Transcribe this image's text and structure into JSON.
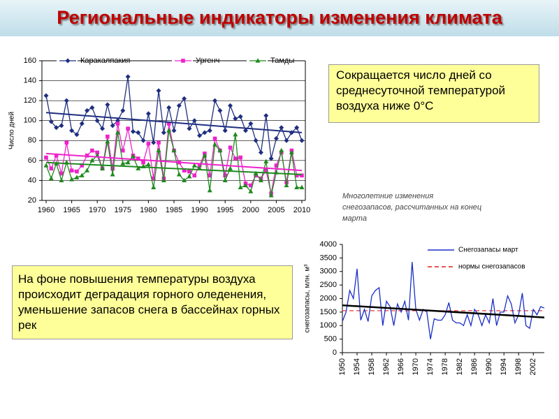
{
  "title": "Региональные индикаторы изменения климата",
  "text_boxes": [
    "Сокращается число дней со среднесуточной температурой воздуха ниже 0°С",
    "На фоне повышения температуры воздуха происходит деградация горного оледенения, уменьшение запасов снега в бассейнах горных рек"
  ],
  "chart_data": [
    {
      "type": "line",
      "ylabel": "Число дней",
      "legend": "top",
      "grid": true,
      "x": [
        1960,
        1961,
        1962,
        1963,
        1964,
        1965,
        1966,
        1967,
        1968,
        1969,
        1970,
        1971,
        1972,
        1973,
        1974,
        1975,
        1976,
        1977,
        1978,
        1979,
        1980,
        1981,
        1982,
        1983,
        1984,
        1985,
        1986,
        1987,
        1988,
        1989,
        1990,
        1991,
        1992,
        1993,
        1994,
        1995,
        1996,
        1997,
        1998,
        1999,
        2000,
        2001,
        2002,
        2003,
        2004,
        2005,
        2006,
        2007,
        2008,
        2009,
        2010
      ],
      "xlim": [
        1960,
        2010
      ],
      "xticks": [
        1960,
        1965,
        1970,
        1975,
        1980,
        1985,
        1990,
        1995,
        2000,
        2005,
        2010
      ],
      "ylim": [
        20,
        160
      ],
      "yticks": [
        20,
        40,
        60,
        80,
        100,
        120,
        140,
        160
      ],
      "series": [
        {
          "name": "Каракалпакия",
          "color": "#1f2f80",
          "marker": "diamond",
          "values": [
            125,
            99,
            93,
            95,
            120,
            90,
            86,
            97,
            110,
            113,
            100,
            92,
            116,
            95,
            100,
            110,
            144,
            89,
            88,
            80,
            107,
            78,
            130,
            88,
            113,
            90,
            115,
            122,
            92,
            100,
            85,
            88,
            90,
            120,
            110,
            90,
            115,
            102,
            104,
            90,
            97,
            80,
            68,
            105,
            62,
            82,
            93,
            80,
            88,
            93,
            80
          ],
          "trend": {
            "x": [
              1960,
              2010
            ],
            "values": [
              108,
              88
            ]
          }
        },
        {
          "name": "Ургенч",
          "color": "#ee22cc",
          "marker": "square",
          "values": [
            63,
            52,
            65,
            47,
            78,
            50,
            49,
            55,
            65,
            70,
            68,
            52,
            84,
            52,
            97,
            70,
            92,
            65,
            62,
            58,
            77,
            42,
            78,
            42,
            97,
            70,
            58,
            50,
            49,
            45,
            55,
            67,
            45,
            82,
            70,
            45,
            73,
            62,
            63,
            37,
            35,
            45,
            42,
            50,
            27,
            55,
            68,
            38,
            70,
            45,
            45
          ],
          "trend": {
            "x": [
              1960,
              2010
            ],
            "values": [
              67,
              50
            ]
          }
        },
        {
          "name": "Тамды",
          "color": "#1e8a1e",
          "marker": "triangle",
          "values": [
            55,
            42,
            57,
            40,
            58,
            41,
            43,
            45,
            50,
            60,
            65,
            52,
            79,
            46,
            88,
            57,
            58,
            64,
            52,
            54,
            56,
            33,
            70,
            40,
            90,
            70,
            46,
            40,
            44,
            55,
            52,
            65,
            30,
            76,
            70,
            40,
            52,
            86,
            33,
            35,
            29,
            47,
            40,
            59,
            25,
            48,
            70,
            35,
            68,
            33,
            33
          ],
          "trend": {
            "x": [
              1960,
              2010
            ],
            "values": [
              58,
              46
            ]
          }
        }
      ]
    },
    {
      "type": "line",
      "title": "Многолетние изменения снегозапасов, рассчитанных на конец марта",
      "ylabel": "снегозапасы, млн. м³",
      "legend": "upper right",
      "grid": false,
      "x": [
        1950,
        1951,
        1952,
        1953,
        1954,
        1955,
        1956,
        1957,
        1958,
        1959,
        1960,
        1961,
        1962,
        1963,
        1964,
        1965,
        1966,
        1967,
        1968,
        1969,
        1970,
        1971,
        1972,
        1973,
        1974,
        1975,
        1976,
        1977,
        1978,
        1979,
        1980,
        1981,
        1982,
        1983,
        1984,
        1985,
        1986,
        1987,
        1988,
        1989,
        1990,
        1991,
        1992,
        1993,
        1994,
        1995,
        1996,
        1997,
        1998,
        1999,
        2000,
        2001,
        2002,
        2003,
        2004,
        2005
      ],
      "xlim": [
        1950,
        2005
      ],
      "xticks": [
        1950,
        1954,
        1958,
        1962,
        1966,
        1970,
        1974,
        1978,
        1982,
        1986,
        1990,
        1994,
        1998,
        2002
      ],
      "ylim": [
        0,
        4000
      ],
      "yticks": [
        0,
        500,
        1000,
        1500,
        2000,
        2500,
        3000,
        3500,
        4000
      ],
      "series": [
        {
          "name": "Снегозапасы март",
          "color": "#1a2fc8",
          "marker": "none",
          "values": [
            1150,
            1500,
            2300,
            2000,
            3100,
            1200,
            1600,
            1150,
            2100,
            2300,
            2400,
            1000,
            1900,
            1700,
            1000,
            1800,
            1500,
            1900,
            1200,
            3350,
            1600,
            1200,
            1600,
            1500,
            500,
            1250,
            1200,
            1200,
            1400,
            1850,
            1200,
            1100,
            1100,
            1000,
            1400,
            1000,
            1600,
            1400,
            1000,
            1400,
            1100,
            2000,
            1000,
            1500,
            1500,
            2100,
            1800,
            1100,
            1400,
            2200,
            1000,
            900,
            1600,
            1400,
            1700,
            1650
          ],
          "trend": {
            "x": [
              1950,
              2005
            ],
            "values": [
              1750,
              1300
            ]
          }
        }
      ],
      "norm": {
        "name": "нормы снегозапасов",
        "color": "#e02020",
        "value": 1550
      }
    }
  ]
}
